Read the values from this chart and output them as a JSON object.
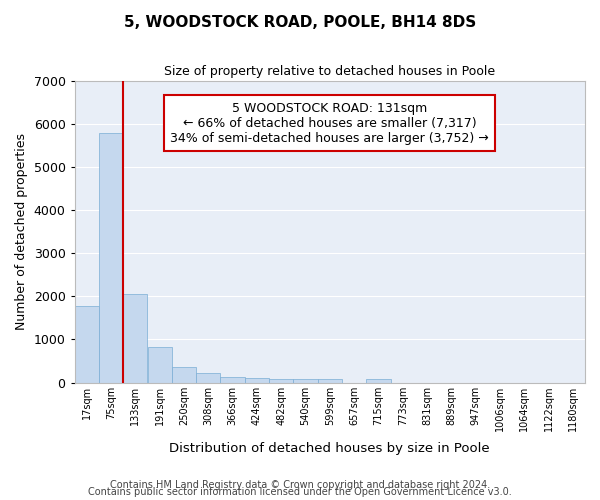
{
  "title1": "5, WOODSTOCK ROAD, POOLE, BH14 8DS",
  "title2": "Size of property relative to detached houses in Poole",
  "xlabel": "Distribution of detached houses by size in Poole",
  "ylabel": "Number of detached properties",
  "bar_color": "#c5d8ee",
  "bar_edge_color": "#7aadd4",
  "background_color": "#e8eef7",
  "grid_color": "#ffffff",
  "annotation_box_color": "#cc0000",
  "vline_color": "#cc0000",
  "bin_labels": [
    "17sqm",
    "75sqm",
    "133sqm",
    "191sqm",
    "250sqm",
    "308sqm",
    "366sqm",
    "424sqm",
    "482sqm",
    "540sqm",
    "599sqm",
    "657sqm",
    "715sqm",
    "773sqm",
    "831sqm",
    "889sqm",
    "947sqm",
    "1006sqm",
    "1064sqm",
    "1122sqm",
    "1180sqm"
  ],
  "bar_values": [
    1780,
    5780,
    2060,
    830,
    370,
    230,
    120,
    100,
    90,
    80,
    80,
    0,
    75,
    0,
    0,
    0,
    0,
    0,
    0,
    0,
    0
  ],
  "ylim": [
    0,
    7000
  ],
  "yticks": [
    0,
    1000,
    2000,
    3000,
    4000,
    5000,
    6000,
    7000
  ],
  "vline_position": 1.5,
  "annotation_text": "5 WOODSTOCK ROAD: 131sqm\n← 66% of detached houses are smaller (7,317)\n34% of semi-detached houses are larger (3,752) →",
  "footnote1": "Contains HM Land Registry data © Crown copyright and database right 2024.",
  "footnote2": "Contains public sector information licensed under the Open Government Licence v3.0."
}
